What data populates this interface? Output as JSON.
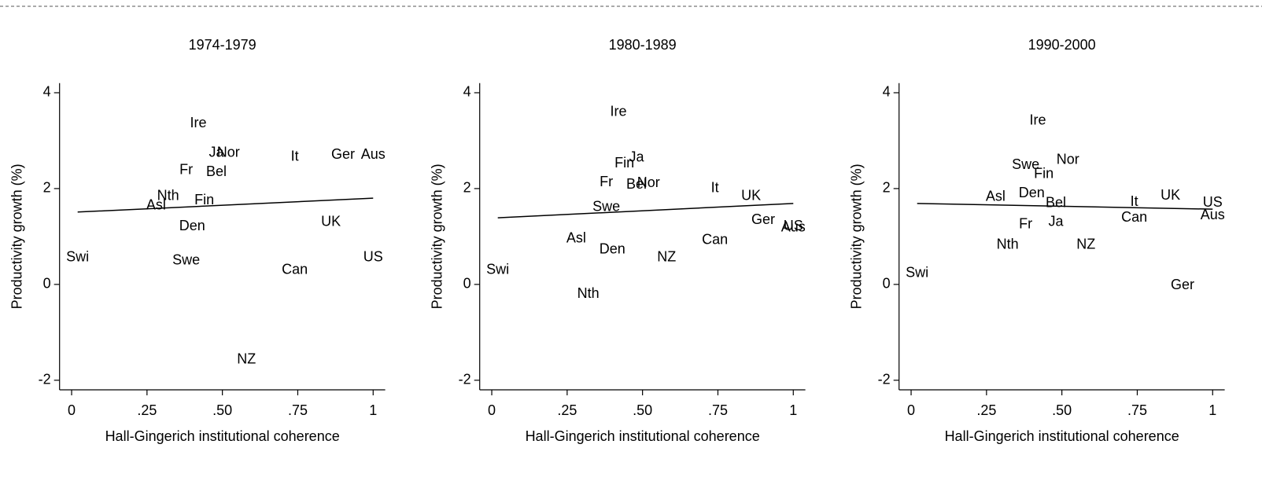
{
  "chart_data": [
    {
      "type": "scatter",
      "title": "1974-1979",
      "xlabel": "Hall-Gingerich institutional coherence",
      "ylabel": "Productivity growth (%)",
      "xlim": [
        -0.04,
        1.04
      ],
      "ylim": [
        -2.2,
        4.2
      ],
      "xticks": [
        0,
        {
          "value": 0.25,
          "label": ".25"
        },
        {
          "value": 0.5,
          "label": ".50"
        },
        {
          "value": 0.75,
          "label": ".75"
        },
        1
      ],
      "yticks": [
        4,
        2,
        0,
        -2
      ],
      "labels": [
        "Swi",
        "Asl",
        "Nth",
        "Ire",
        "Ja",
        "Nor",
        "Fr",
        "Bel",
        "Fin",
        "Den",
        "Swe",
        "NZ",
        "It",
        "Ger",
        "Aus",
        "UK",
        "Can",
        "US"
      ],
      "x": [
        0.02,
        0.28,
        0.32,
        0.42,
        0.48,
        0.52,
        0.38,
        0.48,
        0.44,
        0.4,
        0.38,
        0.58,
        0.74,
        0.9,
        1.0,
        0.86,
        0.74,
        1.0
      ],
      "y": [
        0.56,
        1.64,
        1.84,
        3.36,
        2.74,
        2.74,
        2.38,
        2.34,
        1.75,
        1.21,
        0.49,
        -1.57,
        2.66,
        2.7,
        2.7,
        1.3,
        0.3,
        0.56
      ],
      "fit": {
        "x": [
          0.02,
          1.0
        ],
        "y": [
          1.51,
          1.8
        ]
      }
    },
    {
      "type": "scatter",
      "title": "1980-1989",
      "xlabel": "Hall-Gingerich institutional coherence",
      "ylabel": "Productivity growth (%)",
      "xlim": [
        -0.04,
        1.04
      ],
      "ylim": [
        -2.2,
        4.2
      ],
      "xticks": [
        0,
        {
          "value": 0.25,
          "label": ".25"
        },
        {
          "value": 0.5,
          "label": ".50"
        },
        {
          "value": 0.75,
          "label": ".75"
        },
        1
      ],
      "yticks": [
        4,
        2,
        0,
        -2
      ],
      "labels": [
        "Ire",
        "Fin",
        "Ja",
        "Bel",
        "Nor",
        "Fr",
        "Swe",
        "It",
        "UK",
        "Ger",
        "US",
        "Aus",
        "Can",
        "NZ",
        "Asl",
        "Den",
        "Swi",
        "Nth"
      ],
      "x": [
        0.42,
        0.44,
        0.48,
        0.48,
        0.52,
        0.38,
        0.38,
        0.74,
        0.86,
        0.9,
        1.0,
        1.0,
        0.74,
        0.58,
        0.28,
        0.4,
        0.02,
        0.32
      ],
      "y": [
        3.59,
        2.52,
        2.64,
        2.08,
        2.11,
        2.13,
        1.61,
        2.0,
        1.84,
        1.34,
        1.21,
        1.18,
        0.92,
        0.56,
        0.95,
        0.72,
        0.3,
        -0.2
      ],
      "fit": {
        "x": [
          0.02,
          1.0
        ],
        "y": [
          1.39,
          1.69
        ]
      }
    },
    {
      "type": "scatter",
      "title": "1990-2000",
      "xlabel": "Hall-Gingerich institutional coherence",
      "ylabel": "Productivity growth (%)",
      "xlim": [
        -0.04,
        1.04
      ],
      "ylim": [
        -2.2,
        4.2
      ],
      "xticks": [
        0,
        {
          "value": 0.25,
          "label": ".25"
        },
        {
          "value": 0.5,
          "label": ".50"
        },
        {
          "value": 0.75,
          "label": ".75"
        },
        1
      ],
      "yticks": [
        4,
        2,
        0,
        -2
      ],
      "labels": [
        "Ire",
        "Swe",
        "Fin",
        "Nor",
        "Den",
        "Asl",
        "Bel",
        "It",
        "UK",
        "US",
        "Aus",
        "Can",
        "Fr",
        "Ja",
        "Nth",
        "NZ",
        "Swi",
        "Ger"
      ],
      "x": [
        0.42,
        0.38,
        0.44,
        0.52,
        0.4,
        0.28,
        0.48,
        0.74,
        0.86,
        1.0,
        1.0,
        0.74,
        0.38,
        0.48,
        0.32,
        0.58,
        0.02,
        0.9
      ],
      "y": [
        3.41,
        2.49,
        2.3,
        2.59,
        1.9,
        1.82,
        1.69,
        1.72,
        1.85,
        1.7,
        1.44,
        1.39,
        1.25,
        1.3,
        0.82,
        0.82,
        0.23,
        -0.02
      ],
      "fit": {
        "x": [
          0.02,
          1.0
        ],
        "y": [
          1.69,
          1.57
        ]
      }
    }
  ]
}
